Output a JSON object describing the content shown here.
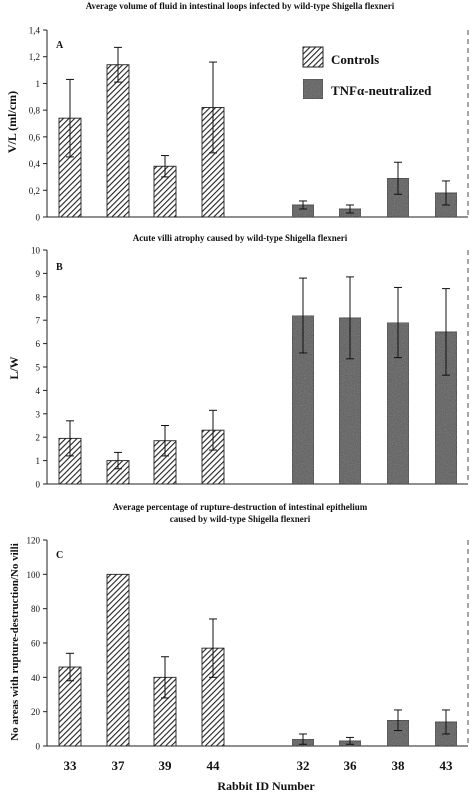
{
  "colors": {
    "hatch": "#222222",
    "gray": "#5a5a5a",
    "axis": "#222222",
    "paper": "#ffffff"
  },
  "xaxis": {
    "ticks": [
      "33",
      "37",
      "39",
      "44",
      "32",
      "36",
      "38",
      "43"
    ],
    "label": "Rabbit ID Number"
  },
  "legend": {
    "controls": "Controls",
    "tnf": "TNFα-neutralized"
  },
  "chart_data": [
    {
      "panel": "A",
      "type": "bar",
      "title": "Average volume of fluid in intestinal loops infected by wild-type Shigella flexneri",
      "ylabel": "V/L (ml/cm)",
      "ylim": [
        0,
        1.4
      ],
      "yticks": [
        "0",
        "0,2",
        "0,4",
        "0,6",
        "0,8",
        "1",
        "1,2",
        "1,4"
      ],
      "legend_placement": "top-right",
      "categories": [
        "33",
        "37",
        "39",
        "44",
        "32",
        "36",
        "38",
        "43"
      ],
      "series": [
        {
          "name": "Controls",
          "values": [
            0.74,
            1.14,
            0.38,
            0.82,
            null,
            null,
            null,
            null
          ],
          "errors": [
            0.29,
            0.13,
            0.08,
            0.34,
            null,
            null,
            null,
            null
          ]
        },
        {
          "name": "TNFα-neutralized",
          "values": [
            null,
            null,
            null,
            null,
            0.09,
            0.06,
            0.29,
            0.18
          ],
          "errors": [
            null,
            null,
            null,
            null,
            0.03,
            0.03,
            0.12,
            0.09
          ]
        }
      ]
    },
    {
      "panel": "B",
      "type": "bar",
      "title": "Acute villi atrophy caused by wild-type Shigella flexneri",
      "ylabel": "L/W",
      "ylim": [
        0,
        10
      ],
      "yticks": [
        "0",
        "1",
        "2",
        "3",
        "4",
        "5",
        "6",
        "7",
        "8",
        "9",
        "10"
      ],
      "categories": [
        "33",
        "37",
        "39",
        "44",
        "32",
        "36",
        "38",
        "43"
      ],
      "series": [
        {
          "name": "Controls",
          "values": [
            1.95,
            1.0,
            1.85,
            2.3,
            null,
            null,
            null,
            null
          ],
          "errors": [
            0.75,
            0.35,
            0.65,
            0.85,
            null,
            null,
            null,
            null
          ]
        },
        {
          "name": "TNFα-neutralized",
          "values": [
            null,
            null,
            null,
            null,
            7.2,
            7.1,
            6.9,
            6.5
          ],
          "errors": [
            null,
            null,
            null,
            null,
            1.6,
            1.75,
            1.5,
            1.85
          ]
        }
      ]
    },
    {
      "panel": "C",
      "type": "bar",
      "title": "Average percentage of rupture-destruction of intestinal epithelium caused by wild-type Shigella flexneri",
      "ylabel": "No areas with rupture-destruction/No villi",
      "ylim": [
        0,
        120
      ],
      "yticks": [
        "0",
        "20",
        "40",
        "60",
        "80",
        "100",
        "120"
      ],
      "categories": [
        "33",
        "37",
        "39",
        "44",
        "32",
        "36",
        "38",
        "43"
      ],
      "series": [
        {
          "name": "Controls",
          "values": [
            46,
            100,
            40,
            57,
            null,
            null,
            null,
            null
          ],
          "errors": [
            8,
            0,
            12,
            17,
            null,
            null,
            null,
            null
          ]
        },
        {
          "name": "TNFα-neutralized",
          "values": [
            null,
            null,
            null,
            null,
            4,
            3,
            15,
            14
          ],
          "errors": [
            null,
            null,
            null,
            null,
            3,
            2,
            6,
            7
          ]
        }
      ]
    }
  ]
}
